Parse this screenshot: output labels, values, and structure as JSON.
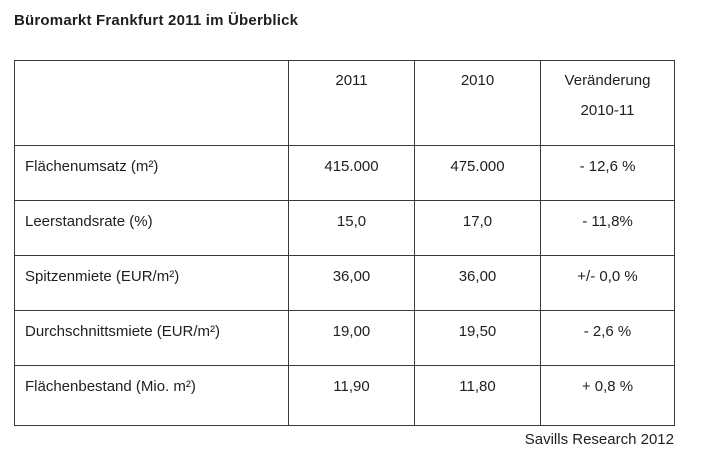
{
  "page": {
    "title": "Büromarkt Frankfurt 2011 im Überblick",
    "source": "Savills Research 2012"
  },
  "table": {
    "header": {
      "col_metric": "",
      "col_2011": "2011",
      "col_2010": "2010",
      "change_line1": "Veränderung",
      "change_line2": "2010-11"
    },
    "rows": [
      {
        "label": "Flächenumsatz (m²)",
        "v2011": "415.000",
        "v2010": "475.000",
        "change": "- 12,6 %"
      },
      {
        "label": "Leerstandsrate (%)",
        "v2011": "15,0",
        "v2010": "17,0",
        "change": "- 11,8%"
      },
      {
        "label": "Spitzenmiete (EUR/m²)",
        "v2011": "36,00",
        "v2010": "36,00",
        "change": "+/- 0,0 %"
      },
      {
        "label": "Durchschnittsmiete (EUR/m²)",
        "v2011": "19,00",
        "v2010": "19,50",
        "change": "- 2,6 %"
      },
      {
        "label": "Flächenbestand (Mio. m²)",
        "v2011": "11,90",
        "v2010": "11,80",
        "change": "+ 0,8 %"
      }
    ]
  },
  "chart_data": {
    "type": "table",
    "title": "Büromarkt Frankfurt 2011 im Überblick",
    "columns": [
      "",
      "2011",
      "2010",
      "Veränderung 2010-11"
    ],
    "rows": [
      [
        "Flächenumsatz (m²)",
        "415.000",
        "475.000",
        "- 12,6 %"
      ],
      [
        "Leerstandsrate (%)",
        "15,0",
        "17,0",
        "- 11,8%"
      ],
      [
        "Spitzenmiete (EUR/m²)",
        "36,00",
        "36,00",
        "+/- 0,0 %"
      ],
      [
        "Durchschnittsmiete (EUR/m²)",
        "19,00",
        "19,50",
        "- 2,6 %"
      ],
      [
        "Flächenbestand (Mio. m²)",
        "11,90",
        "11,80",
        "+ 0,8 %"
      ]
    ],
    "source": "Savills Research 2012"
  },
  "colors": {
    "text": "#1f1f1f",
    "border": "#3a3a3a",
    "background": "#ffffff"
  }
}
